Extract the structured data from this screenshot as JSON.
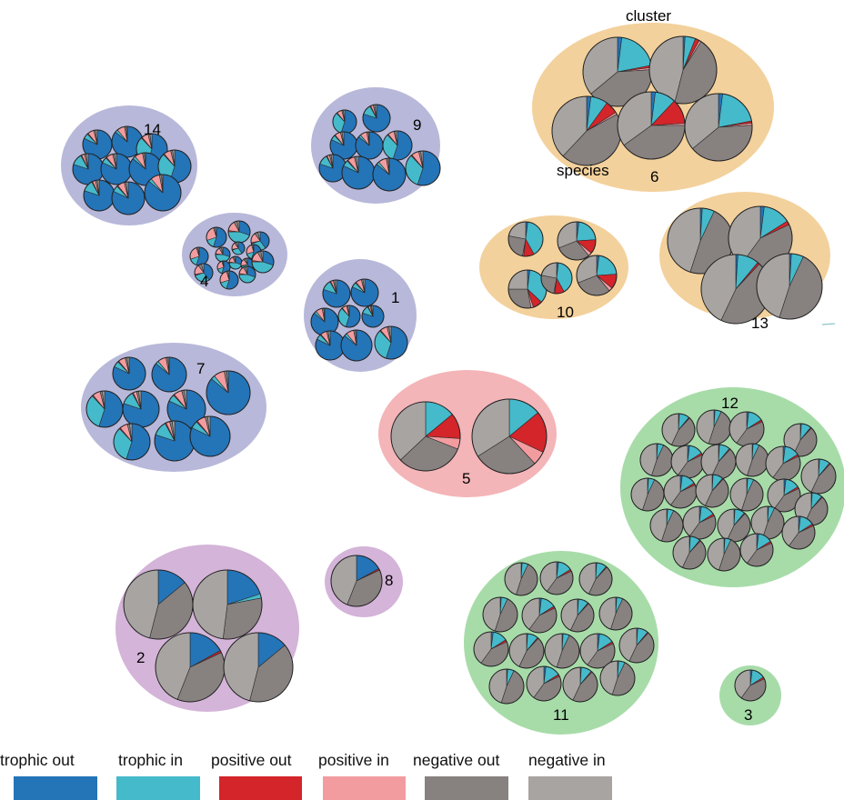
{
  "colors": {
    "trophic_out": "#2474b8",
    "trophic_in": "#45bacb",
    "positive_out": "#d3252a",
    "positive_in": "#f39ca0",
    "negative_out": "#878180",
    "negative_in": "#a7a4a2",
    "purple_bg": "#b8b8da",
    "orange_bg": "#f3d19c",
    "pink_bg": "#f4b5b8",
    "green_bg": "#a7dca9",
    "lilac_bg": "#d4b4d8"
  },
  "annotations": {
    "cluster": "cluster",
    "species": "species"
  },
  "legend": [
    {
      "key": "trophic_out",
      "label": "trophic out"
    },
    {
      "key": "trophic_in",
      "label": "trophic in"
    },
    {
      "key": "positive_out",
      "label": "positive out"
    },
    {
      "key": "positive_in",
      "label": "positive in"
    },
    {
      "key": "negative_out",
      "label": "negative out"
    },
    {
      "key": "negative_in",
      "label": "negative in"
    }
  ],
  "clusters": [
    {
      "id": "14",
      "color": "purple_bg",
      "profile": "blue"
    },
    {
      "id": "4",
      "color": "purple_bg",
      "profile": "mixed"
    },
    {
      "id": "9",
      "color": "purple_bg",
      "profile": "blue"
    },
    {
      "id": "1",
      "color": "purple_bg",
      "profile": "blue"
    },
    {
      "id": "7",
      "color": "purple_bg",
      "profile": "blue"
    },
    {
      "id": "6",
      "color": "orange_bg",
      "profile": "grey-red"
    },
    {
      "id": "10",
      "color": "orange_bg",
      "profile": "cyan-red"
    },
    {
      "id": "13",
      "color": "orange_bg",
      "profile": "grey"
    },
    {
      "id": "5",
      "color": "pink_bg",
      "profile": "red"
    },
    {
      "id": "12",
      "color": "green_bg",
      "profile": "grey"
    },
    {
      "id": "11",
      "color": "green_bg",
      "profile": "grey"
    },
    {
      "id": "3",
      "color": "green_bg",
      "profile": "grey"
    },
    {
      "id": "8",
      "color": "lilac_bg",
      "profile": "grey-blue"
    },
    {
      "id": "2",
      "color": "lilac_bg",
      "profile": "grey-blue"
    }
  ]
}
